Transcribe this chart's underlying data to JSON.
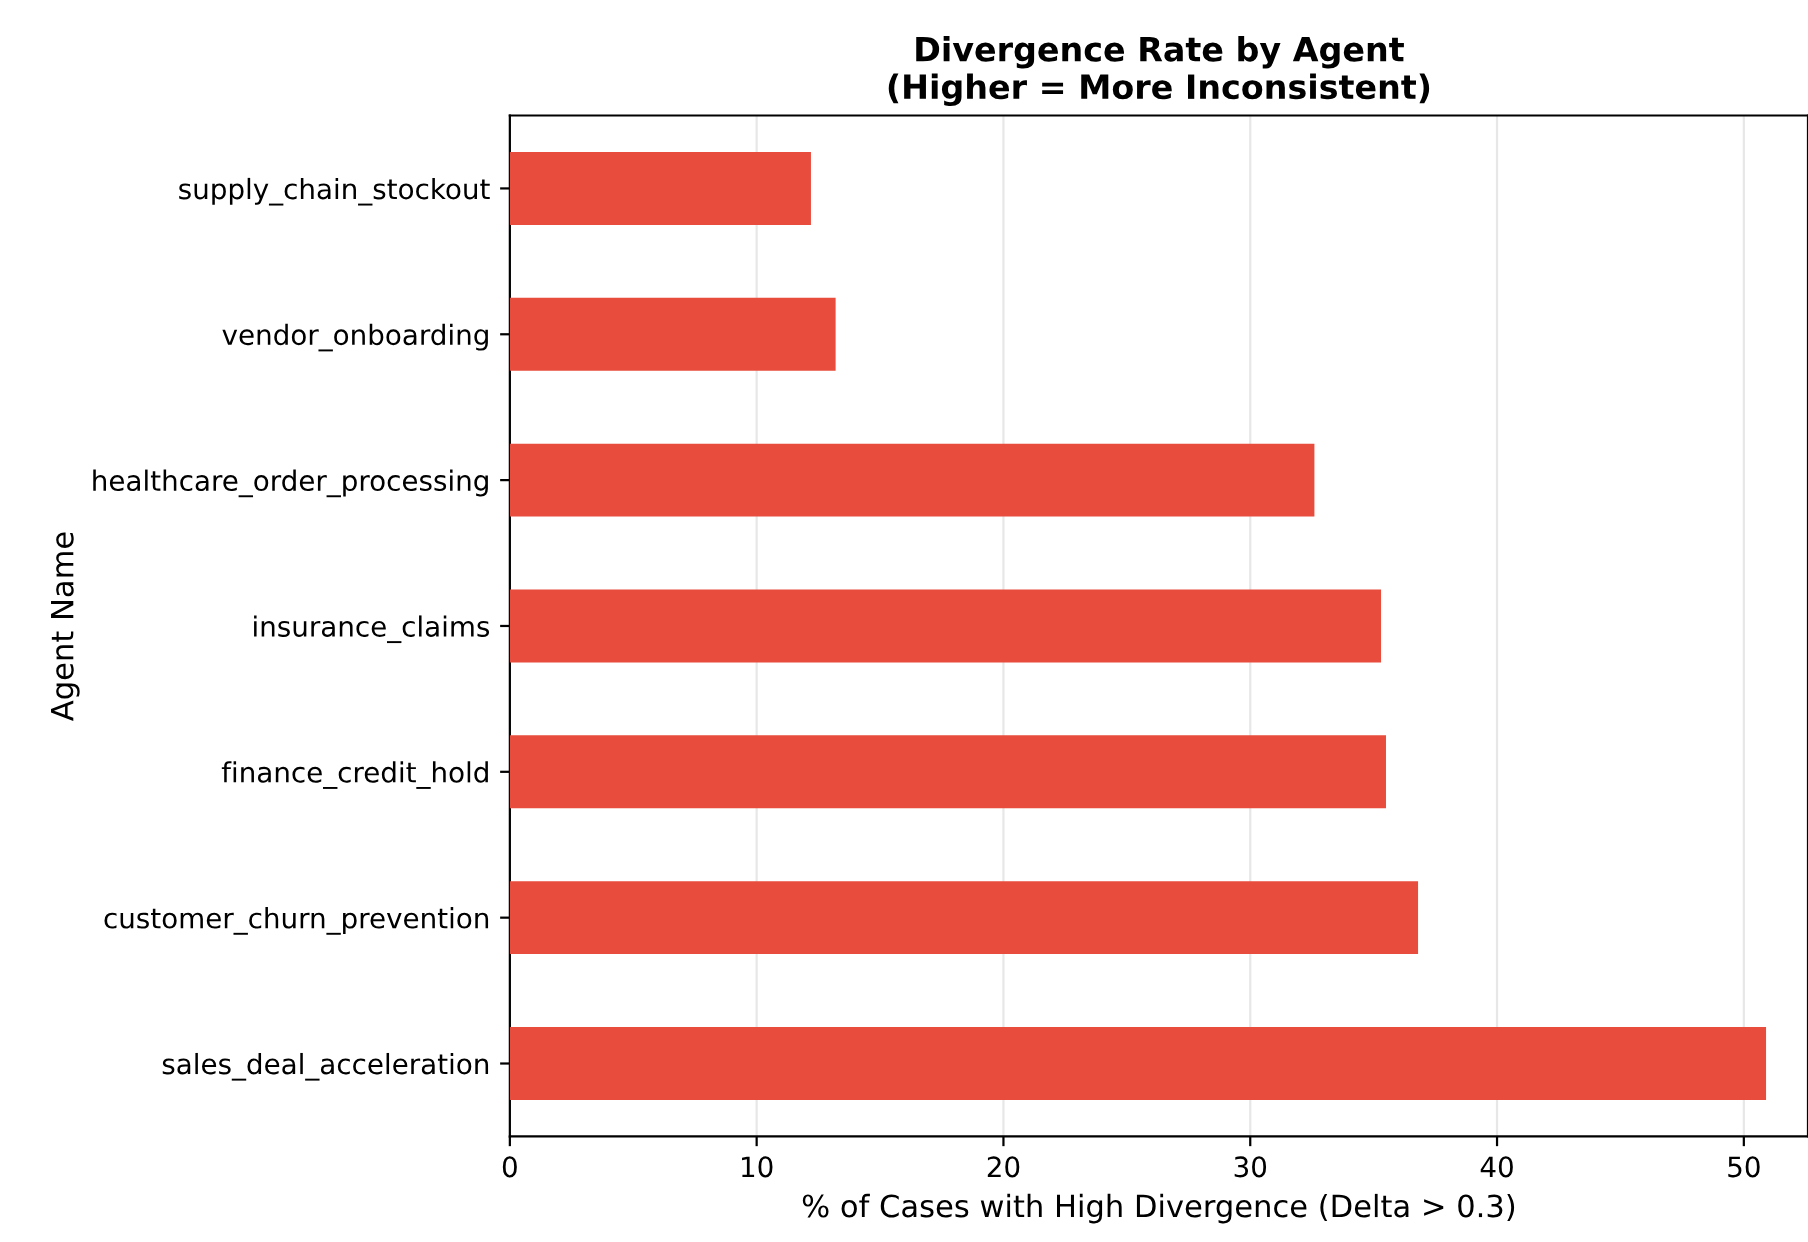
{
  "chart_data": {
    "type": "bar",
    "orientation": "horizontal",
    "title": "Divergence Rate by Agent\n(Higher = More Inconsistent)",
    "xlabel": "% of Cases with High Divergence (Delta > 0.3)",
    "ylabel": "Agent Name",
    "categories": [
      "supply_chain_stockout",
      "vendor_onboarding",
      "healthcare_order_processing",
      "insurance_claims",
      "finance_credit_hold",
      "customer_churn_prevention",
      "sales_deal_acceleration"
    ],
    "values": [
      12.2,
      13.2,
      32.6,
      35.3,
      35.5,
      36.8,
      50.9
    ],
    "color": "#e74c3c",
    "xlim": [
      0,
      52.6
    ],
    "xticks": [
      0,
      10,
      20,
      30,
      40,
      50
    ],
    "grid": "x"
  }
}
